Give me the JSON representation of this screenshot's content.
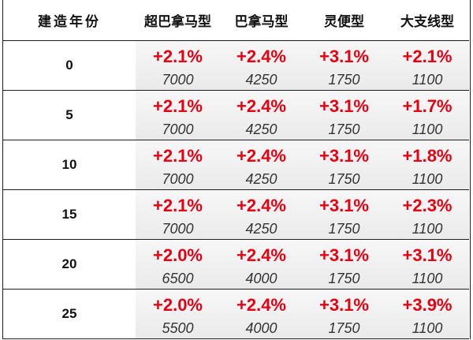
{
  "chart_data": {
    "type": "table",
    "columns": [
      "建造年份",
      "超巴拿马型",
      "巴拿马型",
      "灵便型",
      "大支线型"
    ],
    "rows": [
      {
        "label": "0",
        "cells": [
          {
            "change": "+2.1%",
            "value": "7000"
          },
          {
            "change": "+2.4%",
            "value": "4250"
          },
          {
            "change": "+3.1%",
            "value": "1750"
          },
          {
            "change": "+2.1%",
            "value": "1100"
          }
        ]
      },
      {
        "label": "5",
        "cells": [
          {
            "change": "+2.1%",
            "value": "7000"
          },
          {
            "change": "+2.4%",
            "value": "4250"
          },
          {
            "change": "+3.1%",
            "value": "1750"
          },
          {
            "change": "+1.7%",
            "value": "1100"
          }
        ]
      },
      {
        "label": "10",
        "cells": [
          {
            "change": "+2.1%",
            "value": "7000"
          },
          {
            "change": "+2.4%",
            "value": "4250"
          },
          {
            "change": "+3.1%",
            "value": "1750"
          },
          {
            "change": "+1.8%",
            "value": "1100"
          }
        ]
      },
      {
        "label": "15",
        "cells": [
          {
            "change": "+2.1%",
            "value": "7000"
          },
          {
            "change": "+2.4%",
            "value": "4250"
          },
          {
            "change": "+3.1%",
            "value": "1750"
          },
          {
            "change": "+2.3%",
            "value": "1100"
          }
        ]
      },
      {
        "label": "20",
        "cells": [
          {
            "change": "+2.0%",
            "value": "6500"
          },
          {
            "change": "+2.4%",
            "value": "4000"
          },
          {
            "change": "+3.1%",
            "value": "1750"
          },
          {
            "change": "+3.1%",
            "value": "1100"
          }
        ]
      },
      {
        "label": "25",
        "cells": [
          {
            "change": "+2.0%",
            "value": "5500"
          },
          {
            "change": "+2.4%",
            "value": "4000"
          },
          {
            "change": "+3.1%",
            "value": "1750"
          },
          {
            "change": "+3.9%",
            "value": "1100"
          }
        ]
      }
    ]
  },
  "colors": {
    "change": "#e60012",
    "value": "#333333",
    "border": "#1e1e1e",
    "cell_top": "#f7f7f7",
    "cell_bottom": "#eaeaea"
  }
}
